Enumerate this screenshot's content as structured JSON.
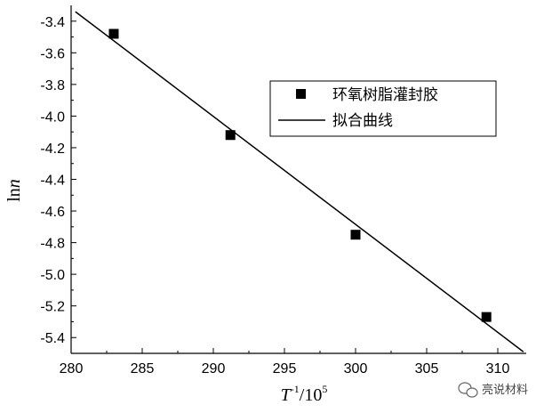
{
  "chart_data": {
    "type": "scatter",
    "xlabel_main": "T",
    "xlabel_sup1": "-1",
    "xlabel_mid": "/10",
    "xlabel_sup2": "5",
    "ylabel_prefix": "ln",
    "ylabel_italic": "n",
    "xlim": [
      280,
      312
    ],
    "ylim": [
      -5.5,
      -3.3
    ],
    "xticks": [
      "280",
      "285",
      "290",
      "295",
      "300",
      "305",
      "310"
    ],
    "yticks": [
      "-3.4",
      "-3.6",
      "-3.8",
      "-4.0",
      "-4.2",
      "-4.4",
      "-4.6",
      "-4.8",
      "-5.0",
      "-5.2",
      "-5.4"
    ],
    "series": [
      {
        "name": "环氧树脂灌封胶",
        "kind": "scatter",
        "marker": "square",
        "points": [
          {
            "x": 283.0,
            "y": -3.48
          },
          {
            "x": 291.2,
            "y": -4.12
          },
          {
            "x": 300.0,
            "y": -4.75
          },
          {
            "x": 309.2,
            "y": -5.27
          }
        ]
      },
      {
        "name": "拟合曲线",
        "kind": "line",
        "points": [
          {
            "x": 280.3,
            "y": -3.34
          },
          {
            "x": 311.8,
            "y": -5.49
          }
        ]
      }
    ],
    "legend_position": "top-right",
    "grid": false
  },
  "watermark": {
    "text": "亮说材料",
    "icon": "wechat-icon"
  }
}
